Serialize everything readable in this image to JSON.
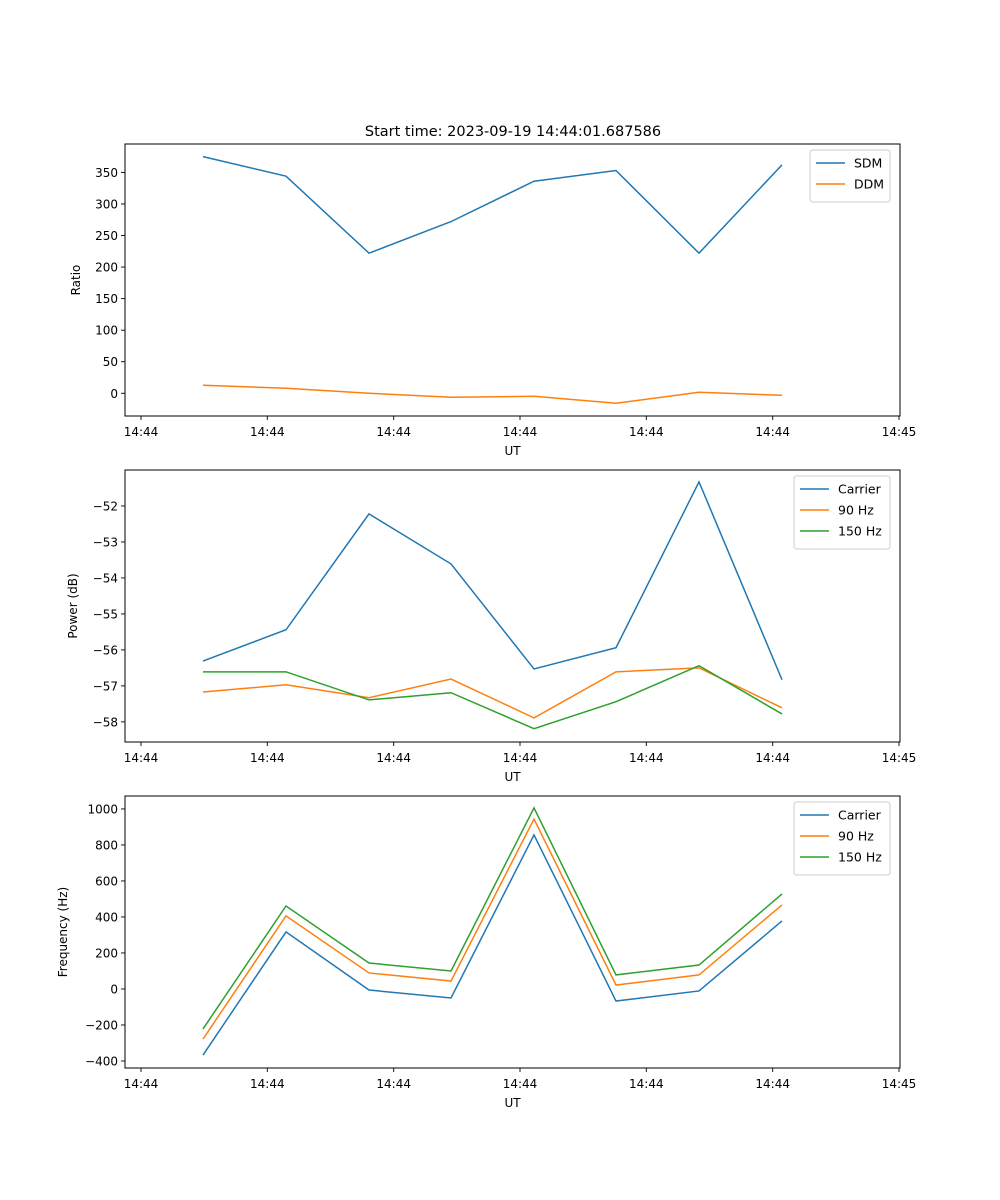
{
  "figure": {
    "title": "Start time: 2023-09-19 14:44:01.687586"
  },
  "chart_data": [
    {
      "type": "line",
      "title": "Start time: 2023-09-19 14:44:01.687586",
      "xlabel": "UT",
      "ylabel": "Ratio",
      "x_tick_labels": [
        "14:44",
        "14:44",
        "14:44",
        "14:44",
        "14:44",
        "14:44",
        "14:45"
      ],
      "y_ticks": [
        0,
        50,
        100,
        150,
        200,
        250,
        300,
        350
      ],
      "ylim": [
        -36,
        395
      ],
      "x_index": [
        0,
        1,
        2,
        3,
        4,
        5,
        6,
        7
      ],
      "legend_position": "top-right",
      "grid": false,
      "series": [
        {
          "name": "SDM",
          "color": "#1f77b4",
          "values": [
            375,
            344,
            222,
            272,
            336,
            353,
            222,
            362
          ]
        },
        {
          "name": "DDM",
          "color": "#ff7f0e",
          "values": [
            12.7,
            7.9,
            0.0,
            -6.3,
            -4.8,
            -15.8,
            1.6,
            -3.2
          ]
        }
      ]
    },
    {
      "type": "line",
      "xlabel": "UT",
      "ylabel": "Power (dB)",
      "x_tick_labels": [
        "14:44",
        "14:44",
        "14:44",
        "14:44",
        "14:44",
        "14:44",
        "14:45"
      ],
      "y_ticks": [
        -58,
        -57,
        -56,
        -55,
        -54,
        -53,
        -52
      ],
      "y_tick_labels": [
        "−58",
        "−57",
        "−56",
        "−55",
        "−54",
        "−53",
        "−52"
      ],
      "ylim": [
        -58.56,
        -51.0
      ],
      "x_index": [
        0,
        1,
        2,
        3,
        4,
        5,
        6,
        7
      ],
      "legend_position": "top-right",
      "grid": false,
      "series": [
        {
          "name": "Carrier",
          "color": "#1f77b4",
          "values": [
            -56.31,
            -55.44,
            -52.22,
            -53.61,
            -56.53,
            -55.94,
            -51.33,
            -56.83
          ]
        },
        {
          "name": "90 Hz",
          "color": "#ff7f0e",
          "values": [
            -57.17,
            -56.97,
            -57.33,
            -56.81,
            -57.89,
            -56.61,
            -56.5,
            -57.61
          ]
        },
        {
          "name": "150 Hz",
          "color": "#2ca02c",
          "values": [
            -56.61,
            -56.61,
            -57.39,
            -57.19,
            -58.19,
            -57.44,
            -56.44,
            -57.78
          ]
        }
      ]
    },
    {
      "type": "line",
      "xlabel": "UT",
      "ylabel": "Frequency (Hz)",
      "x_tick_labels": [
        "14:44",
        "14:44",
        "14:44",
        "14:44",
        "14:44",
        "14:44",
        "14:45"
      ],
      "y_ticks": [
        -400,
        -200,
        0,
        200,
        400,
        600,
        800,
        1000
      ],
      "y_tick_labels": [
        "−400",
        "−200",
        "0",
        "200",
        "400",
        "600",
        "800",
        "1000"
      ],
      "ylim": [
        -439,
        1072
      ],
      "x_index": [
        0,
        1,
        2,
        3,
        4,
        5,
        6,
        7
      ],
      "legend_position": "top-right",
      "grid": false,
      "series": [
        {
          "name": "Carrier",
          "color": "#1f77b4",
          "values": [
            -367,
            317,
            -6,
            -50,
            856,
            -67,
            -11,
            378
          ]
        },
        {
          "name": "90 Hz",
          "color": "#ff7f0e",
          "values": [
            -278,
            406,
            89,
            44,
            944,
            22,
            78,
            467
          ]
        },
        {
          "name": "150 Hz",
          "color": "#2ca02c",
          "values": [
            -222,
            461,
            144,
            100,
            1006,
            78,
            133,
            528
          ]
        }
      ]
    }
  ]
}
